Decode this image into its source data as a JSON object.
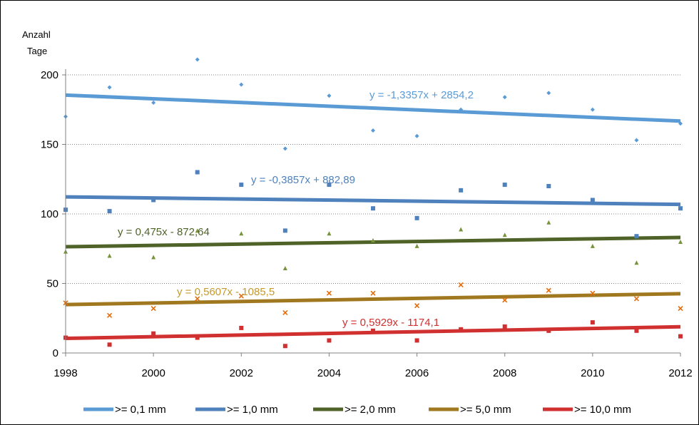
{
  "chart_data": {
    "type": "scatter",
    "ylabel_line1": "Anzahl",
    "ylabel_line2": "Tage",
    "xlim": [
      1998,
      2012
    ],
    "ylim": [
      0,
      200
    ],
    "x_ticks": [
      1998,
      2000,
      2002,
      2004,
      2006,
      2008,
      2010,
      2012
    ],
    "y_ticks": [
      0,
      50,
      100,
      150,
      200
    ],
    "grid": "horizontal-dotted",
    "legend_position": "bottom",
    "x": [
      1998,
      1999,
      2000,
      2001,
      2002,
      2003,
      2004,
      2005,
      2006,
      2007,
      2008,
      2009,
      2010,
      2011,
      2012
    ],
    "series": [
      {
        "name": ">= 0,1 mm",
        "color": "#5B9BD5",
        "marker": "diamond",
        "values": [
          170,
          191,
          180,
          211,
          193,
          147,
          185,
          160,
          156,
          175,
          184,
          187,
          175,
          153,
          165
        ],
        "trend": {
          "slope": -1.3357,
          "intercept": 2854.2,
          "label": "y = -1,3357x + 2854,2",
          "label_color": "#5B9BD5"
        }
      },
      {
        "name": ">= 1,0 mm",
        "color": "#4F81BD",
        "marker": "square",
        "values": [
          103,
          102,
          110,
          130,
          121,
          88,
          121,
          104,
          97,
          117,
          121,
          120,
          110,
          84,
          104
        ],
        "trend": {
          "slope": -0.3857,
          "intercept": 882.89,
          "label": "y = -0,3857x + 882,89",
          "label_color": "#4F81BD"
        }
      },
      {
        "name": ">= 2,0 mm",
        "color": "#4F6228",
        "marker": "triangle",
        "values": [
          73,
          70,
          69,
          88,
          86,
          61,
          86,
          81,
          77,
          89,
          85,
          94,
          77,
          65,
          80
        ],
        "trend": {
          "slope": 0.475,
          "intercept": -872.64,
          "label": "y = 0,475x - 872,64",
          "label_color": "#4F6228"
        }
      },
      {
        "name": ">= 5,0 mm",
        "color": "#A07820",
        "marker": "x",
        "values": [
          36,
          27,
          32,
          39,
          41,
          29,
          43,
          43,
          34,
          49,
          38,
          45,
          43,
          39,
          32
        ],
        "trend": {
          "slope": 0.5607,
          "intercept": -1085.5,
          "label": "y = 0,5607x - 1085,5",
          "label_color": "#C49A2C"
        }
      },
      {
        "name": ">= 10,0 mm",
        "color": "#D03030",
        "marker": "square",
        "values": [
          11,
          6,
          14,
          11,
          18,
          5,
          9,
          16,
          9,
          17,
          19,
          16,
          22,
          16,
          12
        ],
        "trend": {
          "slope": 0.5929,
          "intercept": -1174.1,
          "label": "y = 0,5929x - 1174,1",
          "label_color": "#D03030"
        }
      }
    ]
  }
}
